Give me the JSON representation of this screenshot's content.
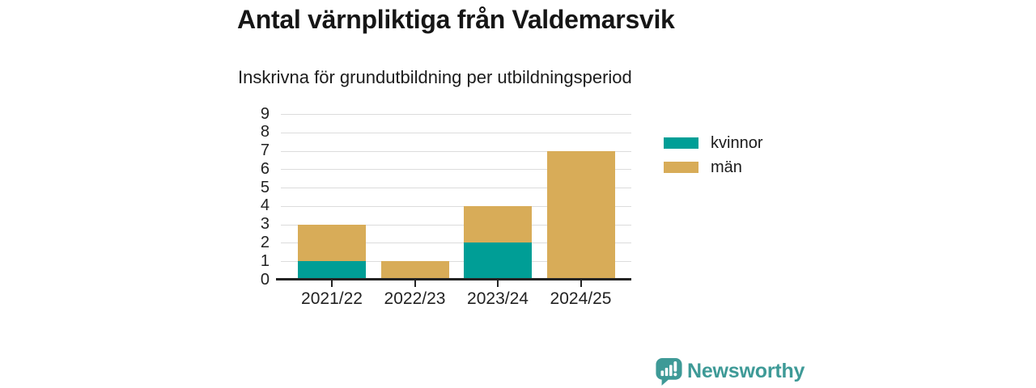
{
  "header": {
    "title": "Antal värnpliktiga från Valdemarsvik",
    "subtitle": "Inskrivna för grundutbildning per utbildningsperiod"
  },
  "chart_data": {
    "type": "bar",
    "stacked": true,
    "title": "Antal värnpliktiga från Valdemarsvik",
    "subtitle": "Inskrivna för grundutbildning per utbildningsperiod",
    "categories": [
      "2021/22",
      "2022/23",
      "2023/24",
      "2024/25"
    ],
    "series": [
      {
        "name": "kvinnor",
        "color": "#009E96",
        "values": [
          1,
          0,
          2,
          0
        ]
      },
      {
        "name": "män",
        "color": "#D8AC58",
        "values": [
          2,
          1,
          2,
          7
        ]
      }
    ],
    "stacked_totals": [
      3,
      1,
      4,
      7
    ],
    "xlabel": "",
    "ylabel": "",
    "ylim": [
      0,
      9
    ],
    "yticks": [
      0,
      1,
      2,
      3,
      4,
      5,
      6,
      7,
      8,
      9
    ],
    "grid": true,
    "legend_position": "right-of-plot"
  },
  "legend": {
    "items": [
      {
        "label": "kvinnor",
        "color": "#009E96"
      },
      {
        "label": "män",
        "color": "#D8AC58"
      }
    ]
  },
  "footer": {
    "brand": "Newsworthy",
    "brand_color": "#3E9A97",
    "logo_icon": "newsworthy-bar-chart-speech-bubble"
  },
  "colors": {
    "series_kvinnor": "#009E96",
    "series_man": "#D8AC58",
    "brand": "#3E9A97",
    "gridline": "#DCDCDC",
    "axis": "#242424",
    "background": "#FFFFFF"
  }
}
